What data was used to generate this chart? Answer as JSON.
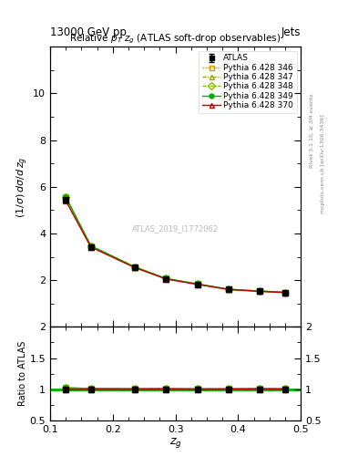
{
  "title": "13000 GeV pp",
  "title_right": "Jets",
  "plot_title": "Relative $p_T$ $z_g$ (ATLAS soft-drop observables)",
  "xlabel": "$z_g$",
  "ylabel_main": "$(1/\\sigma)\\,d\\sigma/d\\,z_g$",
  "ylabel_ratio": "Ratio to ATLAS",
  "watermark": "ATLAS_2019_I1772062",
  "rivet_text": "Rivet 3.1.10, ≥ 3M events",
  "mcplots_text": "mcplots.cern.ch [arXiv:1306.3436]",
  "x_values": [
    0.125,
    0.165,
    0.235,
    0.285,
    0.335,
    0.385,
    0.435,
    0.475
  ],
  "atlas_y": [
    5.45,
    3.43,
    2.55,
    2.05,
    1.83,
    1.6,
    1.52,
    1.47
  ],
  "atlas_yerr": [
    0.08,
    0.05,
    0.04,
    0.03,
    0.03,
    0.03,
    0.03,
    0.03
  ],
  "pythia_346_y": [
    5.55,
    3.47,
    2.57,
    2.07,
    1.84,
    1.61,
    1.535,
    1.48
  ],
  "pythia_347_y": [
    5.55,
    3.47,
    2.57,
    2.07,
    1.84,
    1.61,
    1.535,
    1.48
  ],
  "pythia_348_y": [
    5.56,
    3.47,
    2.57,
    2.07,
    1.84,
    1.61,
    1.535,
    1.48
  ],
  "pythia_349_y": [
    5.56,
    3.47,
    2.57,
    2.07,
    1.84,
    1.61,
    1.535,
    1.48
  ],
  "pythia_370_y": [
    5.4,
    3.42,
    2.54,
    2.05,
    1.82,
    1.6,
    1.52,
    1.47
  ],
  "color_346": "#c8a000",
  "color_347": "#a0a000",
  "color_348": "#80c000",
  "color_349": "#00b000",
  "color_370": "#c00000",
  "color_atlas": "#000000",
  "xlim": [
    0.1,
    0.5
  ],
  "ylim_main": [
    0,
    12
  ],
  "ylim_ratio": [
    0.5,
    2.0
  ],
  "yticks_main": [
    2,
    4,
    6,
    8,
    10
  ],
  "yticks_ratio": [
    0.5,
    1.0,
    1.5,
    2.0
  ],
  "background_color": "#ffffff",
  "legend_entries": [
    "ATLAS",
    "Pythia 6.428 346",
    "Pythia 6.428 347",
    "Pythia 6.428 348",
    "Pythia 6.428 349",
    "Pythia 6.428 370"
  ]
}
